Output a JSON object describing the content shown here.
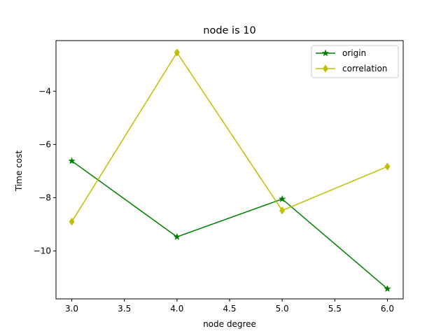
{
  "chart_data": {
    "type": "line",
    "title": "node is 10",
    "xlabel": "node degree",
    "ylabel": "Time cost",
    "xlim": [
      2.85,
      6.15
    ],
    "ylim": [
      -11.8,
      -2.1
    ],
    "xticks": [
      3.0,
      3.5,
      4.0,
      4.5,
      5.0,
      5.5,
      6.0
    ],
    "xtick_labels": [
      "3.0",
      "3.5",
      "4.0",
      "4.5",
      "5.0",
      "5.5",
      "6.0"
    ],
    "yticks": [
      -10,
      -8,
      -6,
      -4
    ],
    "ytick_labels": [
      "−10",
      "−8",
      "−6",
      "−4"
    ],
    "grid": false,
    "legend_position": "top-right",
    "series": [
      {
        "name": "origin",
        "color": "#008000",
        "marker": "star",
        "x": [
          3,
          4,
          5,
          6
        ],
        "y": [
          -6.62,
          -9.47,
          -8.05,
          -11.42
        ]
      },
      {
        "name": "correlation",
        "color": "#bfbf00",
        "marker": "diamond",
        "x": [
          3,
          4,
          5,
          6
        ],
        "y": [
          -8.9,
          -2.55,
          -8.48,
          -6.83
        ]
      }
    ]
  }
}
